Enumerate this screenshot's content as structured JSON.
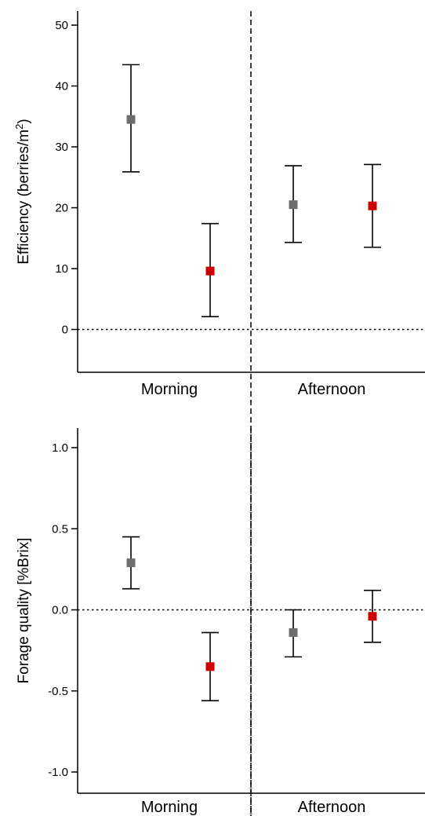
{
  "chart_data": [
    {
      "type": "scatter",
      "ylabel": "Efficiency (berries/m",
      "ylabel_sup": "2",
      "ylabel_close": ")",
      "categories": [
        "Morning",
        "Afternoon"
      ],
      "yticks": [
        "0",
        "10",
        "20",
        "30",
        "40",
        "50"
      ],
      "ylim": [
        -7,
        53
      ],
      "reference_line": 0,
      "points": [
        {
          "category": "Morning",
          "color": "#6e6e6e",
          "y": 34.5,
          "low": 25.9,
          "high": 43.5
        },
        {
          "category": "Morning",
          "color": "#cc0000",
          "y": 9.6,
          "low": 2.1,
          "high": 17.4
        },
        {
          "category": "Afternoon",
          "color": "#6e6e6e",
          "y": 20.5,
          "low": 14.3,
          "high": 26.9
        },
        {
          "category": "Afternoon",
          "color": "#cc0000",
          "y": 20.3,
          "low": 13.5,
          "high": 27.1
        }
      ]
    },
    {
      "type": "scatter",
      "ylabel": "Forage quality [%Brix]",
      "categories": [
        "Morning",
        "Afternoon"
      ],
      "yticks": [
        "-1.0",
        "-0.5",
        "0.0",
        "0.5",
        "1.0"
      ],
      "ylim": [
        -1.08,
        1.08
      ],
      "reference_line": 0,
      "points": [
        {
          "category": "Morning",
          "color": "#6e6e6e",
          "y": 0.29,
          "low": 0.13,
          "high": 0.45
        },
        {
          "category": "Morning",
          "color": "#cc0000",
          "y": -0.35,
          "low": -0.56,
          "high": -0.14
        },
        {
          "category": "Afternoon",
          "color": "#6e6e6e",
          "y": -0.14,
          "low": -0.29,
          "high": 0.0
        },
        {
          "category": "Afternoon",
          "color": "#cc0000",
          "y": -0.04,
          "low": -0.2,
          "high": 0.12
        }
      ]
    }
  ]
}
